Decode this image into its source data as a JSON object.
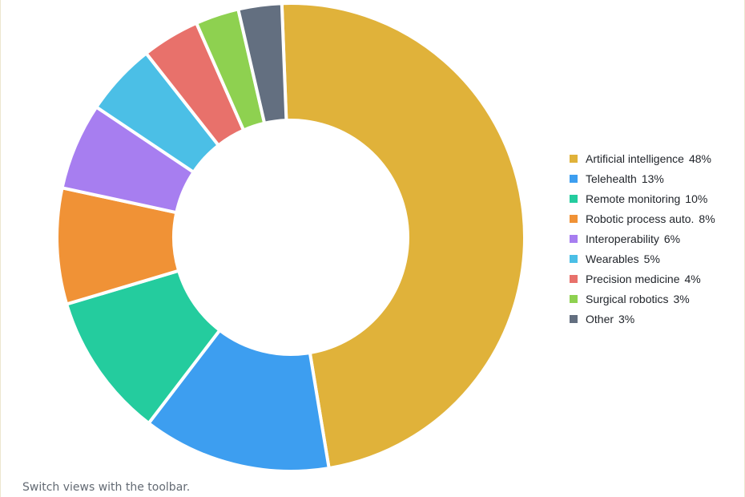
{
  "chart_data": {
    "type": "pie",
    "variant": "donut",
    "slices": [
      {
        "label": "Artificial intelligence",
        "value": 48,
        "value_label": "48%",
        "color": "#e0b23a"
      },
      {
        "label": "Telehealth",
        "value": 13,
        "value_label": "13%",
        "color": "#3d9ef0"
      },
      {
        "label": "Remote monitoring",
        "value": 10,
        "value_label": "10%",
        "color": "#24cc9e"
      },
      {
        "label": "Robotic process auto.",
        "value": 8,
        "value_label": "8%",
        "color": "#f09236"
      },
      {
        "label": "Interoperability",
        "value": 6,
        "value_label": "6%",
        "color": "#a77ef0"
      },
      {
        "label": "Wearables",
        "value": 5,
        "value_label": "5%",
        "color": "#4bbfe6"
      },
      {
        "label": "Precision medicine",
        "value": 4,
        "value_label": "4%",
        "color": "#e8716b"
      },
      {
        "label": "Surgical robotics",
        "value": 3,
        "value_label": "3%",
        "color": "#8ed150"
      },
      {
        "label": "Other",
        "value": 3,
        "value_label": "3%",
        "color": "#636f80"
      }
    ],
    "legend_position": "right"
  },
  "caption": "Switch views with the toolbar."
}
